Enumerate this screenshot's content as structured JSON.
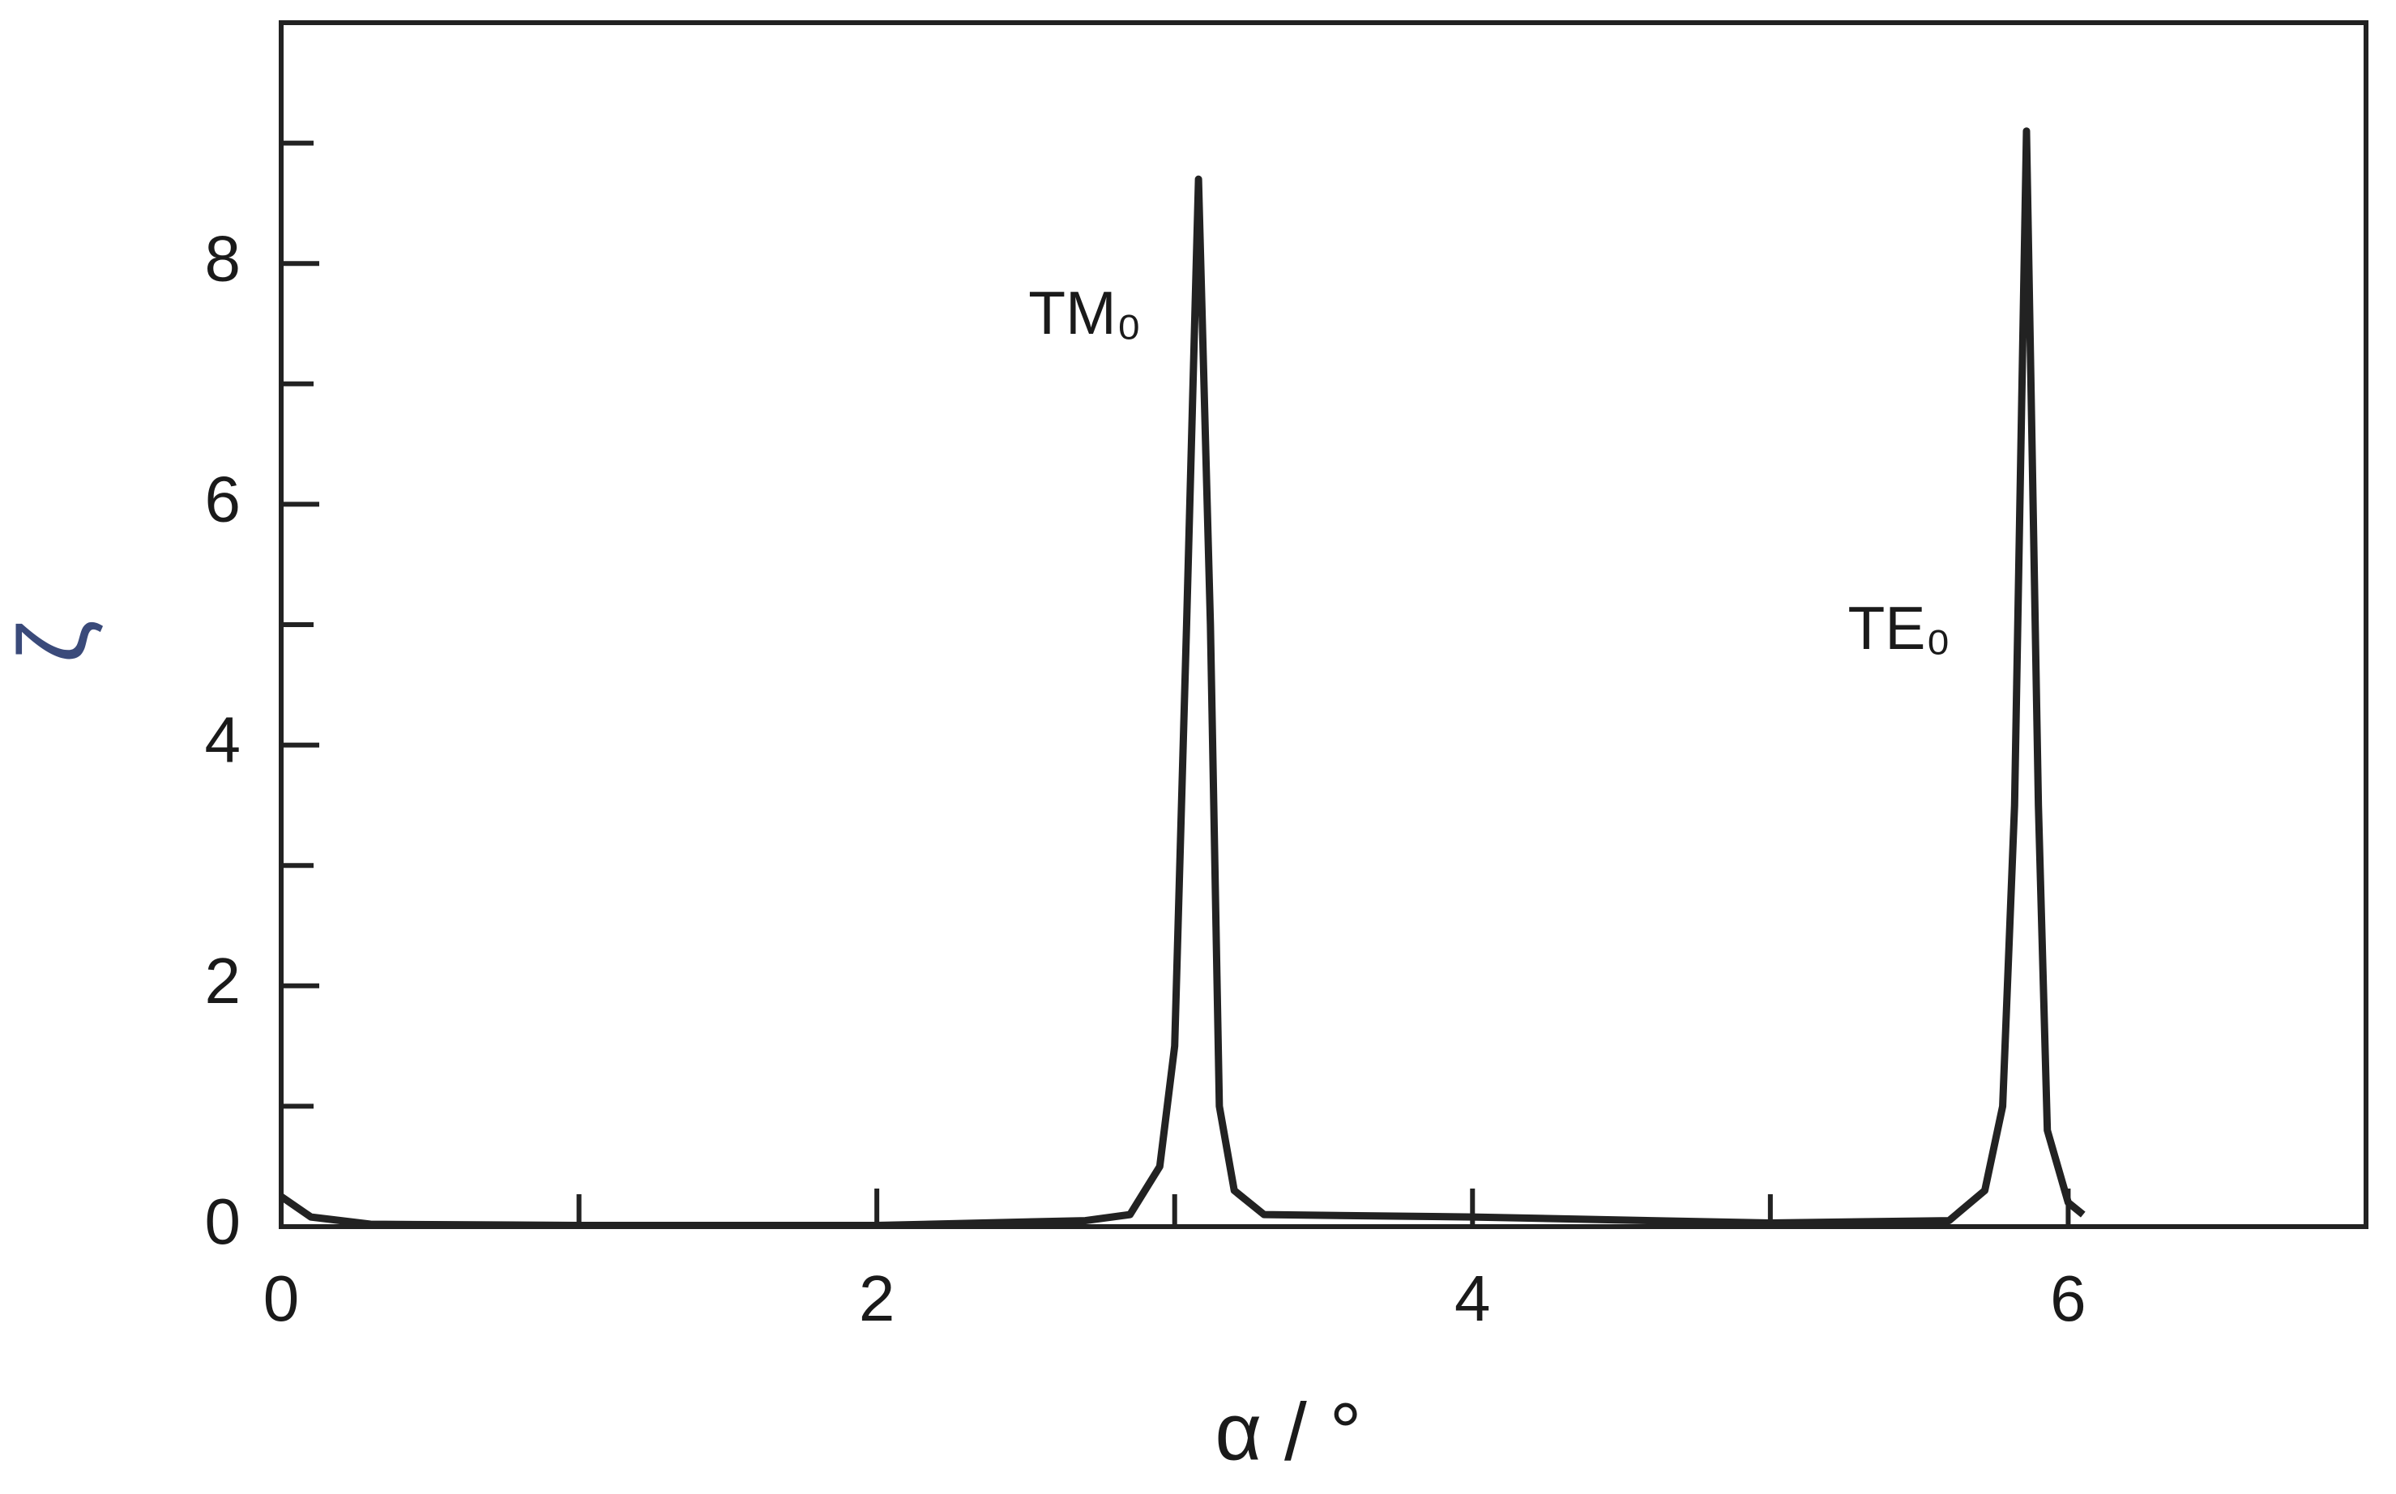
{
  "chart_data": {
    "type": "line",
    "x_label": "α / °",
    "y_label": "ζ",
    "annotations": [
      "TM₀",
      "TE₀"
    ],
    "xlim": [
      0,
      7
    ],
    "ylim": [
      0,
      10
    ],
    "xticks": [
      0,
      2,
      4,
      6
    ],
    "yticks": [
      0,
      2,
      4,
      6,
      8
    ],
    "xminorticks": [
      1,
      3,
      5
    ],
    "yminorticks": [
      1,
      3,
      5,
      7,
      9
    ],
    "color": "#222222",
    "x": [
      0,
      0.1,
      0.3,
      1,
      2,
      2.7,
      2.85,
      2.95,
      3.0,
      3.04,
      3.08,
      3.12,
      3.15,
      3.2,
      3.3,
      4,
      5,
      5.6,
      5.72,
      5.78,
      5.82,
      5.86,
      5.9,
      5.93,
      6.0,
      6.05
    ],
    "values": [
      0.25,
      0.08,
      0.02,
      0.01,
      0.01,
      0.05,
      0.1,
      0.5,
      1.5,
      5,
      8.7,
      5,
      1.0,
      0.3,
      0.1,
      0.08,
      0.03,
      0.05,
      0.3,
      1,
      3.5,
      9.1,
      3.5,
      0.8,
      0.2,
      0.1
    ]
  }
}
